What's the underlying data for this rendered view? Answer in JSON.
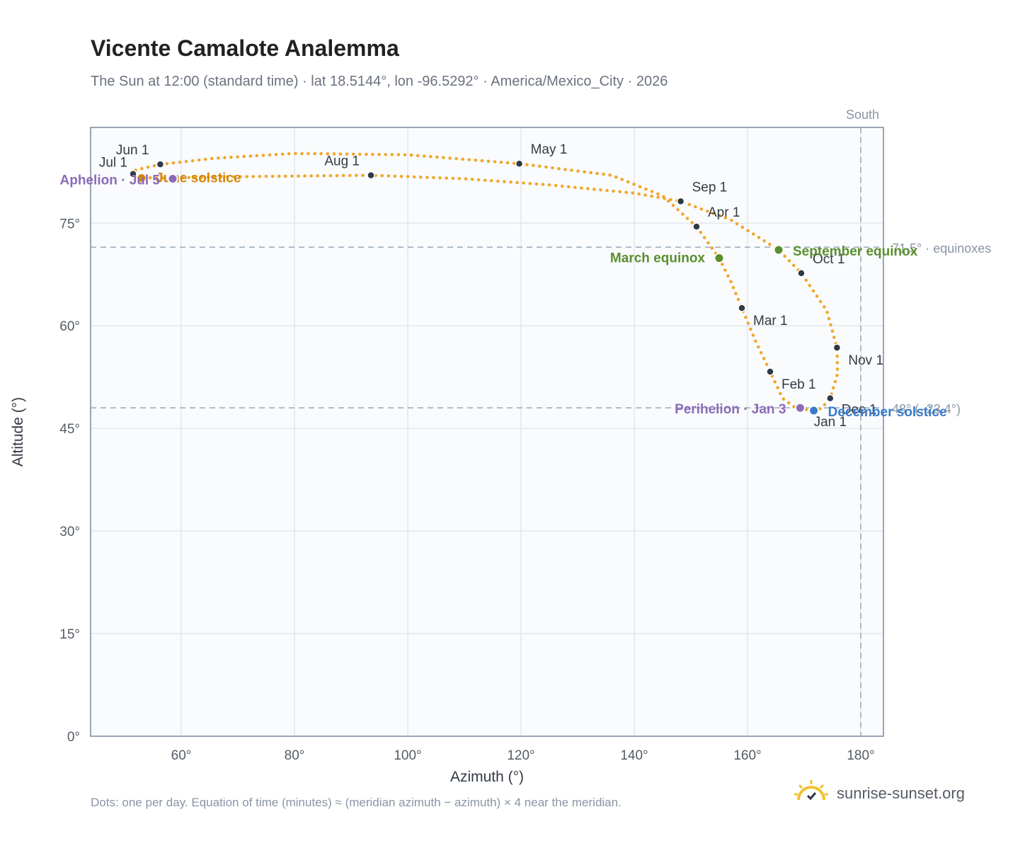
{
  "header": {
    "title": "Vicente Camalote Analemma",
    "subtitle": "The Sun at 12:00 (standard time) · lat 18.5144°, lon -96.5292° · America/Mexico_City · 2026"
  },
  "footer": {
    "note": "Dots: one per day. Equation of time (minutes) ≈ (meridian azimuth − azimuth) × 4 near the meridian.",
    "brand": "sunrise-sunset.org",
    "brand_icon": "sun-check-icon"
  },
  "colors": {
    "path": "#f2a62a",
    "month_marker": "#2f3a48",
    "equinox": "#5a8f2e",
    "solstice_june": "#d4860b",
    "solstice_december": "#3a7bc8",
    "apsis": "#8c6bb8",
    "reference": "#9aa8b8"
  },
  "chart_data": {
    "type": "scatter",
    "xlabel": "Azimuth (°)",
    "ylabel": "Altitude (°)",
    "xlim": [
      44,
      184
    ],
    "ylim": [
      0,
      89
    ],
    "x_ticks": [
      60,
      80,
      100,
      120,
      140,
      160,
      180
    ],
    "x_tick_labels": [
      "60°",
      "80°",
      "100°",
      "120°",
      "140°",
      "160°",
      "180°"
    ],
    "y_ticks": [
      0,
      15,
      30,
      45,
      60,
      75
    ],
    "y_tick_labels": [
      "0°",
      "15°",
      "30°",
      "45°",
      "60°",
      "75°"
    ],
    "grid": true,
    "meridian": {
      "azimuth": 180,
      "label": "South"
    },
    "reference_lines": [
      {
        "altitude": 71.5,
        "label": "71.5° · equinoxes"
      },
      {
        "altitude": 48.0,
        "label": "48° (−23.4°)"
      }
    ],
    "path": [
      {
        "az": 171.5,
        "alt": 47.6
      },
      {
        "az": 168.5,
        "alt": 48.0
      },
      {
        "az": 166.2,
        "alt": 49.4
      },
      {
        "az": 164.0,
        "alt": 53.3
      },
      {
        "az": 161.3,
        "alt": 58.0
      },
      {
        "az": 159.0,
        "alt": 62.6
      },
      {
        "az": 157.1,
        "alt": 66.4
      },
      {
        "az": 155.0,
        "alt": 69.9
      },
      {
        "az": 151.0,
        "alt": 74.5
      },
      {
        "az": 145.0,
        "alt": 79.0
      },
      {
        "az": 136.0,
        "alt": 82.0
      },
      {
        "az": 119.7,
        "alt": 83.7
      },
      {
        "az": 100.0,
        "alt": 85.0
      },
      {
        "az": 80.0,
        "alt": 85.2
      },
      {
        "az": 66.0,
        "alt": 84.5
      },
      {
        "az": 56.3,
        "alt": 83.6
      },
      {
        "az": 52.0,
        "alt": 82.8
      },
      {
        "az": 51.2,
        "alt": 82.0
      },
      {
        "az": 52.5,
        "alt": 81.7
      },
      {
        "az": 55.5,
        "alt": 81.6
      },
      {
        "az": 70.0,
        "alt": 81.8
      },
      {
        "az": 93.5,
        "alt": 82.0
      },
      {
        "az": 110.0,
        "alt": 81.5
      },
      {
        "az": 125.0,
        "alt": 80.6
      },
      {
        "az": 140.0,
        "alt": 79.4
      },
      {
        "az": 148.2,
        "alt": 78.2
      },
      {
        "az": 157.0,
        "alt": 75.5
      },
      {
        "az": 165.5,
        "alt": 71.1
      },
      {
        "az": 169.5,
        "alt": 67.7
      },
      {
        "az": 174.0,
        "alt": 62.2
      },
      {
        "az": 175.8,
        "alt": 56.8
      },
      {
        "az": 175.9,
        "alt": 53.0
      },
      {
        "az": 174.6,
        "alt": 49.4
      },
      {
        "az": 173.0,
        "alt": 47.9
      },
      {
        "az": 171.5,
        "alt": 47.6
      }
    ],
    "month_markers": [
      {
        "label": "Jan 1",
        "az": 171.7,
        "alt": 47.6,
        "anchor": "start",
        "dx": 0,
        "dy": 22
      },
      {
        "label": "Feb 1",
        "az": 164.0,
        "alt": 53.3,
        "anchor": "start",
        "dx": 16,
        "dy": 24
      },
      {
        "label": "Mar 1",
        "az": 159.0,
        "alt": 62.6,
        "anchor": "start",
        "dx": 16,
        "dy": 24
      },
      {
        "label": "Apr 1",
        "az": 151.0,
        "alt": 74.5,
        "anchor": "start",
        "dx": 16,
        "dy": -14
      },
      {
        "label": "May 1",
        "az": 119.7,
        "alt": 83.7,
        "anchor": "start",
        "dx": 16,
        "dy": -14
      },
      {
        "label": "Jun 1",
        "az": 56.3,
        "alt": 83.6,
        "anchor": "end",
        "dx": -16,
        "dy": -14
      },
      {
        "label": "Jul 1",
        "az": 51.5,
        "alt": 82.2,
        "anchor": "end",
        "dx": -8,
        "dy": -10
      },
      {
        "label": "Aug 1",
        "az": 93.5,
        "alt": 82.0,
        "anchor": "end",
        "dx": -16,
        "dy": -14
      },
      {
        "label": "Sep 1",
        "az": 148.2,
        "alt": 78.2,
        "anchor": "start",
        "dx": 16,
        "dy": -14
      },
      {
        "label": "Oct 1",
        "az": 169.5,
        "alt": 67.7,
        "anchor": "start",
        "dx": 16,
        "dy": -14
      },
      {
        "label": "Nov 1",
        "az": 175.8,
        "alt": 56.8,
        "anchor": "start",
        "dx": 16,
        "dy": 24
      },
      {
        "label": "Dec 1",
        "az": 174.6,
        "alt": 49.4,
        "anchor": "start",
        "dx": 16,
        "dy": 22
      }
    ],
    "events": [
      {
        "label": "March equinox",
        "az": 155.0,
        "alt": 69.9,
        "color": "#5a8f2e",
        "anchor": "end",
        "dx": -20,
        "dy": 6
      },
      {
        "label": "September equinox",
        "az": 165.5,
        "alt": 71.1,
        "color": "#5a8f2e",
        "anchor": "start",
        "dx": 20,
        "dy": 8
      },
      {
        "label": "June solstice",
        "az": 53.0,
        "alt": 81.6,
        "color": "#d4860b",
        "anchor": "start",
        "dx": 20,
        "dy": 6
      },
      {
        "label": "December solstice",
        "az": 171.7,
        "alt": 47.6,
        "color": "#3a7bc8",
        "anchor": "start",
        "dx": 20,
        "dy": 8
      },
      {
        "label": "Aphelion · Jul 5",
        "az": 58.5,
        "alt": 81.5,
        "color": "#8c6bb8",
        "anchor": "end",
        "dx": -18,
        "dy": 8
      },
      {
        "label": "Perihelion · Jan 3",
        "az": 169.3,
        "alt": 48.0,
        "color": "#8c6bb8",
        "anchor": "end",
        "dx": -20,
        "dy": 8
      }
    ]
  }
}
